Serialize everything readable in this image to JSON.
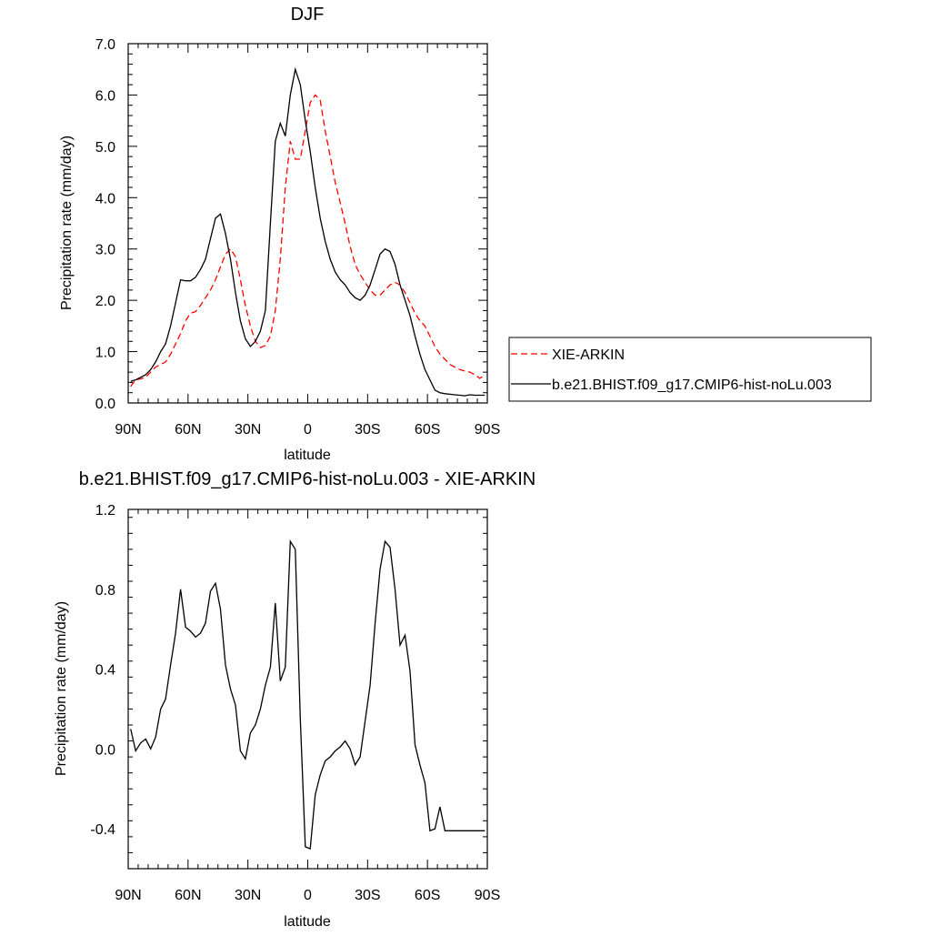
{
  "chart_data": [
    {
      "type": "line",
      "title": "DJF",
      "xlabel": "latitude",
      "ylabel": "Precipitation rate (mm/day)",
      "xlim": [
        -90,
        90
      ],
      "ylim": [
        0,
        7
      ],
      "xticks": [
        -90,
        -60,
        -30,
        0,
        30,
        60,
        90
      ],
      "xtick_labels": [
        "90N",
        "60N",
        "30N",
        "0",
        "30S",
        "60S",
        "90S"
      ],
      "yticks": [
        0,
        1,
        2,
        3,
        4,
        5,
        6,
        7
      ],
      "ytick_labels": [
        "0.0",
        "1.0",
        "2.0",
        "3.0",
        "4.0",
        "5.0",
        "6.0",
        "7.0"
      ],
      "legend_position": "right",
      "series": [
        {
          "name": "XIE-ARKIN",
          "color": "#ff0000",
          "dash": "dashed",
          "x": [
            -88.75,
            -86.25,
            -83.75,
            -81.25,
            -78.75,
            -76.25,
            -73.75,
            -71.25,
            -68.75,
            -66.25,
            -63.75,
            -61.25,
            -58.75,
            -56.25,
            -53.75,
            -51.25,
            -48.75,
            -46.25,
            -43.75,
            -41.25,
            -38.75,
            -36.25,
            -33.75,
            -31.25,
            -28.75,
            -26.25,
            -23.75,
            -21.25,
            -18.75,
            -16.25,
            -13.75,
            -11.25,
            -8.75,
            -6.25,
            -3.75,
            -1.25,
            1.25,
            3.75,
            6.25,
            8.75,
            11.25,
            13.75,
            16.25,
            18.75,
            21.25,
            23.75,
            26.25,
            28.75,
            31.25,
            33.75,
            36.25,
            38.75,
            41.25,
            43.75,
            46.25,
            48.75,
            51.25,
            53.75,
            56.25,
            58.75,
            61.25,
            63.75,
            66.25,
            68.75,
            71.25,
            73.75,
            76.25,
            78.75,
            81.25,
            83.75,
            86.25,
            88.75
          ],
          "y": [
            0.32,
            0.45,
            0.47,
            0.5,
            0.6,
            0.7,
            0.75,
            0.8,
            0.95,
            1.15,
            1.35,
            1.6,
            1.75,
            1.78,
            1.9,
            2.05,
            2.2,
            2.4,
            2.65,
            2.9,
            3.0,
            2.85,
            2.4,
            1.9,
            1.5,
            1.2,
            1.08,
            1.12,
            1.3,
            1.8,
            2.8,
            4.2,
            5.1,
            4.75,
            4.75,
            5.3,
            5.85,
            6.0,
            5.9,
            5.3,
            4.8,
            4.3,
            3.9,
            3.5,
            3.05,
            2.7,
            2.5,
            2.35,
            2.2,
            2.1,
            2.1,
            2.2,
            2.3,
            2.35,
            2.3,
            2.15,
            1.95,
            1.75,
            1.6,
            1.5,
            1.3,
            1.1,
            0.95,
            0.85,
            0.75,
            0.7,
            0.65,
            0.62,
            0.6,
            0.55,
            0.48,
            0.55
          ]
        },
        {
          "name": "b.e21.BHIST.f09_g17.CMIP6-hist-noLu.003",
          "color": "#000000",
          "dash": "solid",
          "x": [
            -88.75,
            -86.25,
            -83.75,
            -81.25,
            -78.75,
            -76.25,
            -73.75,
            -71.25,
            -68.75,
            -66.25,
            -63.75,
            -61.25,
            -58.75,
            -56.25,
            -53.75,
            -51.25,
            -48.75,
            -46.25,
            -43.75,
            -41.25,
            -38.75,
            -36.25,
            -33.75,
            -31.25,
            -28.75,
            -26.25,
            -23.75,
            -21.25,
            -18.75,
            -16.25,
            -13.75,
            -11.25,
            -8.75,
            -6.25,
            -3.75,
            -1.25,
            1.25,
            3.75,
            6.25,
            8.75,
            11.25,
            13.75,
            16.25,
            18.75,
            21.25,
            23.75,
            26.25,
            28.75,
            31.25,
            33.75,
            36.25,
            38.75,
            41.25,
            43.75,
            46.25,
            48.75,
            51.25,
            53.75,
            56.25,
            58.75,
            61.25,
            63.75,
            66.25,
            68.75,
            71.25,
            73.75,
            76.25,
            78.75,
            81.25,
            83.75,
            86.25,
            88.75
          ],
          "y": [
            0.42,
            0.45,
            0.5,
            0.55,
            0.65,
            0.8,
            1.0,
            1.15,
            1.5,
            1.95,
            2.4,
            2.38,
            2.38,
            2.45,
            2.6,
            2.8,
            3.2,
            3.6,
            3.68,
            3.3,
            2.8,
            2.15,
            1.6,
            1.25,
            1.1,
            1.2,
            1.4,
            1.8,
            3.5,
            5.1,
            5.45,
            5.2,
            6.0,
            6.5,
            6.2,
            5.5,
            4.9,
            4.2,
            3.6,
            3.15,
            2.8,
            2.55,
            2.4,
            2.3,
            2.15,
            2.05,
            2.0,
            2.1,
            2.3,
            2.6,
            2.9,
            3.0,
            2.95,
            2.7,
            2.3,
            2.0,
            1.7,
            1.3,
            0.95,
            0.65,
            0.45,
            0.25,
            0.2,
            0.18,
            0.17,
            0.16,
            0.15,
            0.14,
            0.16,
            0.15,
            0.15,
            0.15
          ]
        }
      ]
    },
    {
      "type": "line",
      "title": "b.e21.BHIST.f09_g17.CMIP6-hist-noLu.003 - XIE-ARKIN",
      "xlabel": "latitude",
      "ylabel": "Precipitation rate (mm/day)",
      "xlim": [
        -90,
        90
      ],
      "ylim": [
        -0.6,
        1.2
      ],
      "xticks": [
        -90,
        -60,
        -30,
        0,
        30,
        60,
        90
      ],
      "xtick_labels": [
        "90N",
        "60N",
        "30N",
        "0",
        "30S",
        "60S",
        "90S"
      ],
      "yticks": [
        -0.4,
        0.0,
        0.4,
        0.8,
        1.2
      ],
      "ytick_labels": [
        "-0.4",
        "0.0",
        "0.4",
        "0.8",
        "1.2"
      ],
      "series": [
        {
          "color": "#000000",
          "dash": "solid",
          "x": [
            -88.75,
            -86.25,
            -83.75,
            -81.25,
            -78.75,
            -76.25,
            -73.75,
            -71.25,
            -68.75,
            -66.25,
            -63.75,
            -61.25,
            -58.75,
            -56.25,
            -53.75,
            -51.25,
            -48.75,
            -46.25,
            -43.75,
            -41.25,
            -38.75,
            -36.25,
            -33.75,
            -31.25,
            -28.75,
            -26.25,
            -23.75,
            -21.25,
            -18.75,
            -16.25,
            -13.75,
            -11.25,
            -8.75,
            -6.25,
            -3.75,
            -1.25,
            1.25,
            3.75,
            6.25,
            8.75,
            11.25,
            13.75,
            16.25,
            18.75,
            21.25,
            23.75,
            26.25,
            28.75,
            31.25,
            33.75,
            36.25,
            38.75,
            41.25,
            43.75,
            46.25,
            48.75,
            51.25,
            53.75,
            56.25,
            58.75,
            61.25,
            63.75,
            66.25,
            68.75,
            71.25,
            73.75,
            76.25,
            78.75,
            81.25,
            83.75,
            86.25,
            88.75
          ],
          "y": [
            0.1,
            -0.01,
            0.03,
            0.05,
            0.0,
            0.06,
            0.2,
            0.25,
            0.42,
            0.58,
            0.8,
            0.61,
            0.59,
            0.56,
            0.58,
            0.63,
            0.79,
            0.83,
            0.7,
            0.42,
            0.3,
            0.22,
            -0.01,
            -0.05,
            0.08,
            0.12,
            0.2,
            0.32,
            0.41,
            0.73,
            0.34,
            0.41,
            1.04,
            1.0,
            0.15,
            -0.49,
            -0.5,
            -0.23,
            -0.13,
            -0.06,
            -0.04,
            -0.01,
            0.01,
            0.04,
            0.0,
            -0.08,
            -0.04,
            0.14,
            0.32,
            0.63,
            0.9,
            1.04,
            1.01,
            0.8,
            0.52,
            0.57,
            0.39,
            0.02,
            -0.08,
            -0.17,
            -0.41,
            -0.4,
            -0.29,
            -0.41,
            -0.41,
            -0.41,
            -0.41,
            -0.41,
            -0.41,
            -0.41,
            -0.41,
            -0.41
          ]
        }
      ]
    }
  ]
}
